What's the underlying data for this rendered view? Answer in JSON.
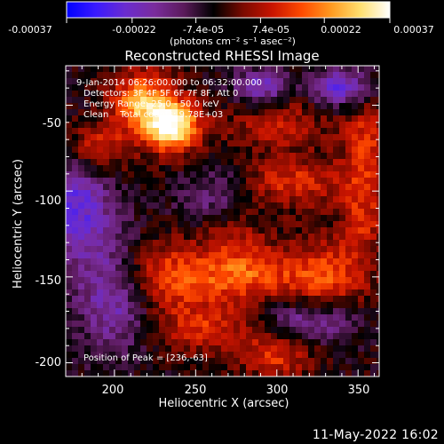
{
  "colors": {
    "background": "#000000",
    "foreground": "#ffffff",
    "colormap": [
      "#0000ff",
      "#3a1aff",
      "#6a2ccf",
      "#7a2c9c",
      "#5a1a5a",
      "#000000",
      "#7a0a00",
      "#c81400",
      "#ff4a00",
      "#ff9a20",
      "#ffe070",
      "#ffffff"
    ]
  },
  "colorbar": {
    "tick_labels": [
      "-0.00037",
      "-0.00022",
      "-7.4e-05",
      "7.4e-05",
      "0.00022",
      "0.00037"
    ],
    "unit_label": "(photons cm⁻² s⁻¹ asec⁻²)"
  },
  "plot": {
    "title": "Reconstructed RHESSI Image",
    "xlabel": "Heliocentric X (arcsec)",
    "ylabel": "Heliocentric Y (arcsec)",
    "x_ticks": [
      "200",
      "250",
      "300",
      "350"
    ],
    "y_ticks": [
      "-50",
      "-100",
      "-150",
      "-200"
    ],
    "annotations": [
      " 9-Jan-2014 06:26:00.000 to 06:32:00.000",
      "Detectors: 3F 4F 5F 6F 7F 8F, Att 0",
      "Energy Range: 25.0 - 50.0 keV",
      "Clean    Total counts: 9.78E+03"
    ],
    "peak_label": "Position of Peak = [236,-63]"
  },
  "footer_timestamp": "11-May-2022 16:02",
  "chart_data": {
    "type": "heatmap",
    "title": "Reconstructed RHESSI Image",
    "xlabel": "Heliocentric X (arcsec)",
    "ylabel": "Heliocentric Y (arcsec)",
    "xlim": [
      170,
      363
    ],
    "ylim": [
      -208,
      -27
    ],
    "x_ticks": [
      200,
      250,
      300,
      350
    ],
    "y_ticks": [
      -50,
      -100,
      -150,
      -200
    ],
    "colorbar_range": [
      -0.00037,
      0.00037
    ],
    "colorbar_ticks": [
      -0.00037,
      -0.00022,
      -7.4e-05,
      7.4e-05,
      0.00022,
      0.00037
    ],
    "peak_position": [
      236,
      -63
    ],
    "time_range": [
      "9-Jan-2014 06:26:00.000",
      "06:32:00.000"
    ],
    "detectors": [
      "3F",
      "4F",
      "5F",
      "6F",
      "7F",
      "8F"
    ],
    "attenuator": 0,
    "energy_range_keV": [
      25.0,
      50.0
    ],
    "method": "Clean",
    "total_counts": 9780,
    "blobs": [
      {
        "x": 236,
        "y": -63,
        "amp": 0.00037,
        "sx": 12,
        "sy": 10
      },
      {
        "x": 218,
        "y": -48,
        "amp": 0.00028,
        "sx": 14,
        "sy": 12
      },
      {
        "x": 190,
        "y": -75,
        "amp": 0.00016,
        "sx": 14,
        "sy": 10
      },
      {
        "x": 300,
        "y": -60,
        "amp": 0.00012,
        "sx": 22,
        "sy": 12
      },
      {
        "x": 310,
        "y": -95,
        "amp": 0.00015,
        "sx": 24,
        "sy": 10
      },
      {
        "x": 355,
        "y": -75,
        "amp": 0.00016,
        "sx": 10,
        "sy": 22
      },
      {
        "x": 352,
        "y": -118,
        "amp": 0.00012,
        "sx": 10,
        "sy": 14
      },
      {
        "x": 232,
        "y": -150,
        "amp": 0.0002,
        "sx": 24,
        "sy": 14
      },
      {
        "x": 280,
        "y": -148,
        "amp": 0.00018,
        "sx": 18,
        "sy": 12
      },
      {
        "x": 328,
        "y": -150,
        "amp": 0.0002,
        "sx": 20,
        "sy": 14
      },
      {
        "x": 255,
        "y": -180,
        "amp": 0.00014,
        "sx": 20,
        "sy": 10
      },
      {
        "x": 300,
        "y": -195,
        "amp": 0.00016,
        "sx": 16,
        "sy": 10
      },
      {
        "x": 272,
        "y": -118,
        "amp": 0.00011,
        "sx": 14,
        "sy": 12
      },
      {
        "x": 175,
        "y": -110,
        "amp": -0.00022,
        "sx": 16,
        "sy": 22
      },
      {
        "x": 200,
        "y": -160,
        "amp": -0.0002,
        "sx": 16,
        "sy": 22
      },
      {
        "x": 265,
        "y": -105,
        "amp": -0.00015,
        "sx": 16,
        "sy": 12
      },
      {
        "x": 290,
        "y": -40,
        "amp": -0.0002,
        "sx": 12,
        "sy": 8
      },
      {
        "x": 340,
        "y": -40,
        "amp": -0.00022,
        "sx": 14,
        "sy": 8
      },
      {
        "x": 320,
        "y": -175,
        "amp": -0.00016,
        "sx": 20,
        "sy": 10
      }
    ]
  }
}
